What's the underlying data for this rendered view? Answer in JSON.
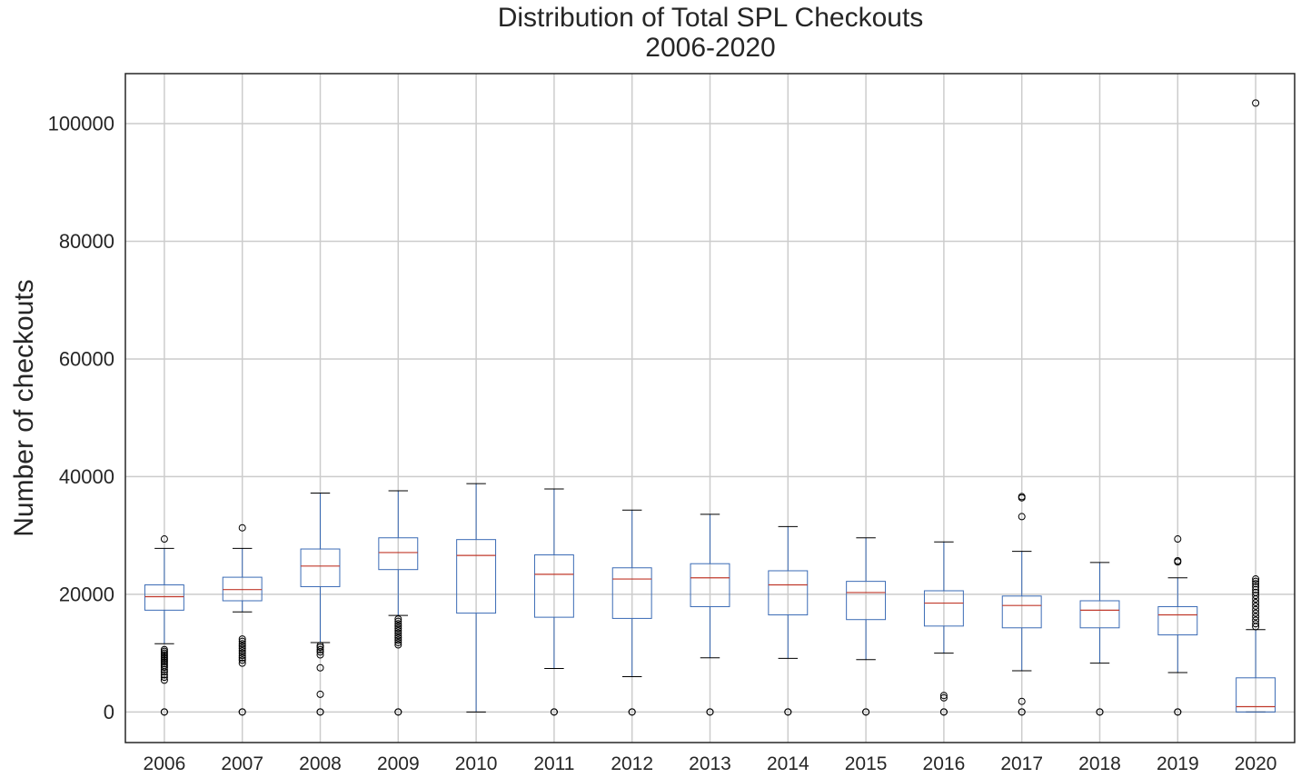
{
  "chart_data": {
    "type": "box",
    "title_line1": "Distribution of Total SPL Checkouts",
    "title_line2": "2006-2020",
    "xlabel": "",
    "ylabel": "Number of checkouts",
    "ylim": [
      -5200,
      108500
    ],
    "yticks": [
      0,
      20000,
      40000,
      60000,
      80000,
      100000
    ],
    "grid": true,
    "colors": {
      "box": "#3b6bb5",
      "median": "#c0392b",
      "whisker_cap": "#000000",
      "grid": "#cccccc",
      "axis": "#262626"
    },
    "categories": [
      "2006",
      "2007",
      "2008",
      "2009",
      "2010",
      "2011",
      "2012",
      "2013",
      "2014",
      "2015",
      "2016",
      "2017",
      "2018",
      "2019",
      "2020"
    ],
    "boxes": [
      {
        "q1": 17300,
        "median": 19600,
        "q3": 21600,
        "whislo": 11600,
        "whishi": 27800,
        "fliers": [
          29400,
          10600,
          10300,
          10000,
          9700,
          9400,
          9100,
          8800,
          8500,
          8200,
          7900,
          7600,
          7200,
          6800,
          6300,
          5900,
          5400,
          0,
          0
        ]
      },
      {
        "q1": 18900,
        "median": 20800,
        "q3": 22900,
        "whislo": 17000,
        "whishi": 27800,
        "fliers": [
          31300,
          12400,
          12000,
          11600,
          11200,
          10800,
          10400,
          10000,
          9600,
          9200,
          8800,
          8300,
          0,
          0
        ]
      },
      {
        "q1": 21300,
        "median": 24800,
        "q3": 27700,
        "whislo": 11800,
        "whishi": 37200,
        "fliers": [
          11300,
          11000,
          10600,
          10200,
          9700,
          7500,
          3000,
          0,
          0
        ]
      },
      {
        "q1": 24200,
        "median": 27100,
        "q3": 29600,
        "whislo": 16400,
        "whishi": 37600,
        "fliers": [
          15800,
          15400,
          15000,
          14600,
          14200,
          13800,
          13400,
          13000,
          12600,
          12200,
          11800,
          11400,
          0,
          0
        ]
      },
      {
        "q1": 16800,
        "median": 26600,
        "q3": 29300,
        "whislo": 0,
        "whishi": 38800,
        "fliers": []
      },
      {
        "q1": 16100,
        "median": 23400,
        "q3": 26700,
        "whislo": 7400,
        "whishi": 37900,
        "fliers": [
          0,
          0
        ]
      },
      {
        "q1": 15900,
        "median": 22600,
        "q3": 24500,
        "whislo": 6000,
        "whishi": 34300,
        "fliers": [
          0,
          0
        ]
      },
      {
        "q1": 17900,
        "median": 22800,
        "q3": 25200,
        "whislo": 9200,
        "whishi": 33600,
        "fliers": [
          0,
          0
        ]
      },
      {
        "q1": 16500,
        "median": 21600,
        "q3": 24000,
        "whislo": 9100,
        "whishi": 31500,
        "fliers": [
          0,
          0
        ]
      },
      {
        "q1": 15700,
        "median": 20300,
        "q3": 22200,
        "whislo": 8900,
        "whishi": 29600,
        "fliers": [
          0,
          0
        ]
      },
      {
        "q1": 14600,
        "median": 18500,
        "q3": 20600,
        "whislo": 10000,
        "whishi": 28900,
        "fliers": [
          2800,
          2400,
          0,
          0
        ]
      },
      {
        "q1": 14300,
        "median": 18100,
        "q3": 19700,
        "whislo": 7000,
        "whishi": 27300,
        "fliers": [
          36600,
          36400,
          33200,
          1800,
          0,
          0
        ]
      },
      {
        "q1": 14300,
        "median": 17300,
        "q3": 18900,
        "whislo": 8300,
        "whishi": 25400,
        "fliers": [
          0,
          0
        ]
      },
      {
        "q1": 13100,
        "median": 16500,
        "q3": 17900,
        "whislo": 6700,
        "whishi": 22800,
        "fliers": [
          29400,
          25700,
          25500,
          0,
          0
        ]
      },
      {
        "q1": 0,
        "median": 900,
        "q3": 5800,
        "whislo": 0,
        "whishi": 14000,
        "fliers": [
          103500,
          22600,
          22200,
          21800,
          21300,
          20800,
          20300,
          19800,
          19200,
          18600,
          18000,
          17400,
          16800,
          16200,
          15600,
          15000,
          14500
        ]
      }
    ]
  }
}
